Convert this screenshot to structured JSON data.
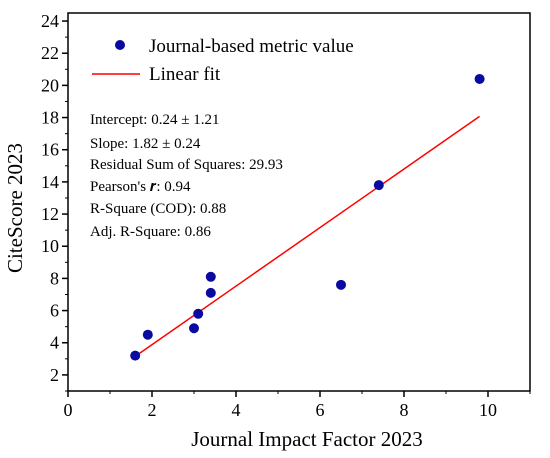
{
  "chart_data": {
    "type": "scatter",
    "xlabel": "Journal Impact Factor 2023",
    "ylabel": "CiteScore 2023",
    "xlim": [
      0,
      11
    ],
    "ylim": [
      1,
      24.5
    ],
    "xticks": [
      "0",
      "2",
      "4",
      "6",
      "8",
      "10"
    ],
    "yticks": [
      "2",
      "4",
      "6",
      "8",
      "10",
      "12",
      "14",
      "16",
      "18",
      "20",
      "22",
      "24"
    ],
    "xtick_values": [
      0,
      2,
      4,
      6,
      8,
      10
    ],
    "ytick_values": [
      2,
      4,
      6,
      8,
      10,
      12,
      14,
      16,
      18,
      20,
      22,
      24
    ],
    "grid": false,
    "legend_position": "top-left",
    "series": [
      {
        "name": "Journal-based metric value",
        "kind": "scatter",
        "color": "#0a0aa0",
        "points": [
          {
            "x": 1.6,
            "y": 3.2
          },
          {
            "x": 1.9,
            "y": 4.5
          },
          {
            "x": 3.0,
            "y": 4.9
          },
          {
            "x": 3.1,
            "y": 5.8
          },
          {
            "x": 3.4,
            "y": 7.1
          },
          {
            "x": 3.4,
            "y": 8.1
          },
          {
            "x": 6.5,
            "y": 7.6
          },
          {
            "x": 7.4,
            "y": 13.8
          },
          {
            "x": 9.8,
            "y": 20.4
          }
        ]
      },
      {
        "name": "Linear fit",
        "kind": "line",
        "color": "#ff0000",
        "intercept": 0.24,
        "slope": 1.82,
        "x_range": [
          1.6,
          9.8
        ]
      }
    ],
    "annotations": [
      "Intercept: 0.24 ± 1.21",
      "Slope: 1.82 ± 0.24",
      "Residual Sum of Squares: 29.93",
      "Pearson's 𝒓: 0.94",
      "R-Square (COD): 0.88",
      "Adj. R-Square: 0.86"
    ]
  }
}
